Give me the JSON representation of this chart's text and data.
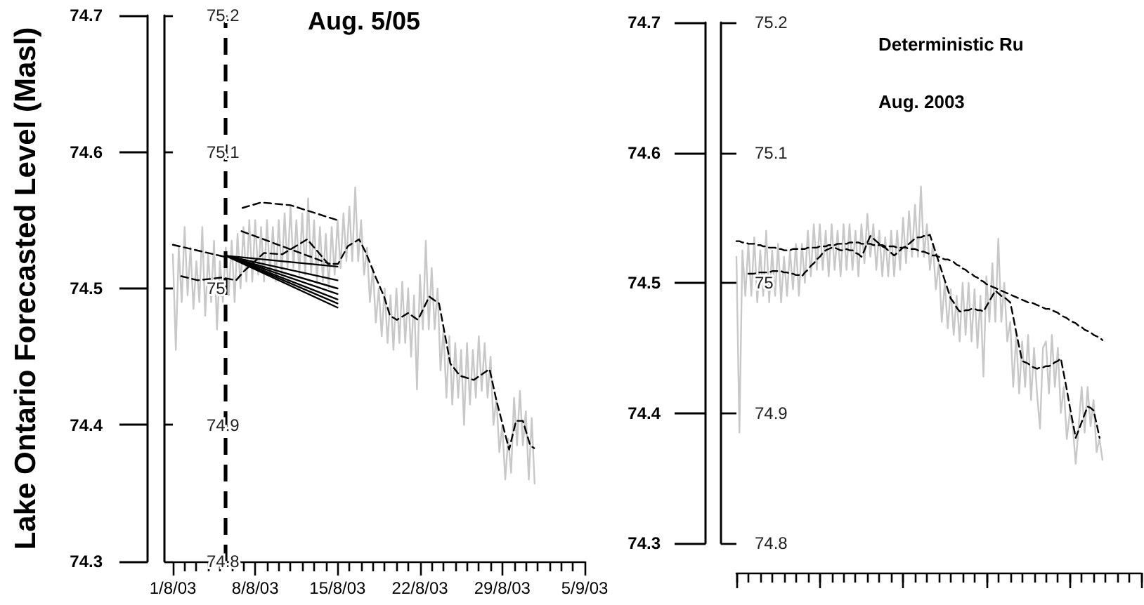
{
  "chart_data": [
    {
      "type": "line",
      "title": "Aug. 5/05",
      "ylabel": "Lake Ontario Forecasted Level (Masl)",
      "marker": "none",
      "xlim": [
        "2003-08-01",
        "2003-09-05"
      ],
      "xticks": [
        {
          "value": "2003-08-01",
          "label": "1/8/03"
        },
        {
          "value": "2003-08-02",
          "label": null
        },
        {
          "value": "2003-08-03",
          "label": null
        },
        {
          "value": "2003-08-04",
          "label": null
        },
        {
          "value": "2003-08-05",
          "label": null
        },
        {
          "value": "2003-08-06",
          "label": null
        },
        {
          "value": "2003-08-07",
          "label": null
        },
        {
          "value": "2003-08-08",
          "label": "8/8/03"
        },
        {
          "value": "2003-08-09",
          "label": null
        },
        {
          "value": "2003-08-10",
          "label": null
        },
        {
          "value": "2003-08-11",
          "label": null
        },
        {
          "value": "2003-08-12",
          "label": null
        },
        {
          "value": "2003-08-13",
          "label": null
        },
        {
          "value": "2003-08-14",
          "label": null
        },
        {
          "value": "2003-08-15",
          "label": "15/8/03"
        },
        {
          "value": "2003-08-16",
          "label": null
        },
        {
          "value": "2003-08-17",
          "label": null
        },
        {
          "value": "2003-08-18",
          "label": null
        },
        {
          "value": "2003-08-19",
          "label": null
        },
        {
          "value": "2003-08-20",
          "label": null
        },
        {
          "value": "2003-08-21",
          "label": null
        },
        {
          "value": "2003-08-22",
          "label": "22/8/03"
        },
        {
          "value": "2003-08-23",
          "label": null
        },
        {
          "value": "2003-08-24",
          "label": null
        },
        {
          "value": "2003-08-25",
          "label": null
        },
        {
          "value": "2003-08-26",
          "label": null
        },
        {
          "value": "2003-08-27",
          "label": null
        },
        {
          "value": "2003-08-28",
          "label": null
        },
        {
          "value": "2003-08-29",
          "label": "29/8/03"
        },
        {
          "value": "2003-08-30",
          "label": null
        },
        {
          "value": "2003-08-31",
          "label": null
        },
        {
          "value": "2003-09-01",
          "label": null
        },
        {
          "value": "2003-09-02",
          "label": null
        },
        {
          "value": "2003-09-03",
          "label": null
        },
        {
          "value": "2003-09-04",
          "label": null
        },
        {
          "value": "2003-09-05",
          "label": "5/9/03"
        }
      ],
      "ylim": [
        74.3,
        74.7
      ],
      "yticks": [
        74.3,
        74.4,
        74.5,
        74.6,
        74.7
      ],
      "y2lim": [
        74.8,
        75.2
      ],
      "y2ticks": [
        74.8,
        74.9,
        75,
        75.1,
        75.2
      ],
      "ref_lines": [
        {
          "axis": "x",
          "value": "2003-08-05T12:00",
          "line_style": "dashed",
          "color": "#000000"
        }
      ],
      "series": [
        {
          "color": "#c8c8c8",
          "line_style": "solid",
          "x": [
            "2003-08-01T00:00",
            "2003-08-01T06:00",
            "2003-08-01T12:00",
            "2003-08-01T18:00",
            "2003-08-02T00:00",
            "2003-08-02T06:00",
            "2003-08-02T12:00",
            "2003-08-02T18:00",
            "2003-08-03T00:00",
            "2003-08-03T06:00",
            "2003-08-03T12:00",
            "2003-08-03T18:00",
            "2003-08-04T00:00",
            "2003-08-04T06:00",
            "2003-08-04T12:00",
            "2003-08-04T18:00",
            "2003-08-05T00:00",
            "2003-08-05T06:00",
            "2003-08-05T12:00",
            "2003-08-05T18:00",
            "2003-08-06T00:00",
            "2003-08-06T06:00",
            "2003-08-06T12:00",
            "2003-08-06T18:00",
            "2003-08-07T00:00",
            "2003-08-07T06:00",
            "2003-08-07T12:00",
            "2003-08-07T18:00",
            "2003-08-08T00:00",
            "2003-08-08T06:00",
            "2003-08-08T12:00",
            "2003-08-08T18:00",
            "2003-08-09T00:00",
            "2003-08-09T06:00",
            "2003-08-09T12:00",
            "2003-08-09T18:00",
            "2003-08-10T00:00",
            "2003-08-10T06:00",
            "2003-08-10T12:00",
            "2003-08-10T18:00",
            "2003-08-11T00:00",
            "2003-08-11T06:00",
            "2003-08-11T12:00",
            "2003-08-11T18:00",
            "2003-08-12T00:00",
            "2003-08-12T06:00",
            "2003-08-12T12:00",
            "2003-08-12T18:00",
            "2003-08-13T00:00",
            "2003-08-13T06:00",
            "2003-08-13T12:00",
            "2003-08-13T18:00",
            "2003-08-14T00:00",
            "2003-08-14T06:00",
            "2003-08-14T12:00",
            "2003-08-14T18:00",
            "2003-08-15T00:00",
            "2003-08-15T06:00",
            "2003-08-15T12:00",
            "2003-08-15T18:00",
            "2003-08-16T00:00",
            "2003-08-16T06:00",
            "2003-08-16T12:00",
            "2003-08-16T18:00",
            "2003-08-17T00:00",
            "2003-08-17T06:00",
            "2003-08-17T12:00",
            "2003-08-17T18:00",
            "2003-08-18T00:00",
            "2003-08-18T06:00",
            "2003-08-18T12:00",
            "2003-08-18T18:00",
            "2003-08-19T00:00",
            "2003-08-19T06:00",
            "2003-08-19T12:00",
            "2003-08-19T18:00",
            "2003-08-20T00:00",
            "2003-08-20T06:00",
            "2003-08-20T12:00",
            "2003-08-20T18:00",
            "2003-08-21T00:00",
            "2003-08-21T06:00",
            "2003-08-21T12:00",
            "2003-08-21T18:00",
            "2003-08-22T00:00",
            "2003-08-22T06:00",
            "2003-08-22T12:00",
            "2003-08-22T18:00",
            "2003-08-23T00:00",
            "2003-08-23T06:00",
            "2003-08-23T12:00",
            "2003-08-23T18:00",
            "2003-08-24T00:00",
            "2003-08-24T06:00",
            "2003-08-24T12:00",
            "2003-08-24T18:00",
            "2003-08-25T00:00",
            "2003-08-25T06:00",
            "2003-08-25T12:00",
            "2003-08-25T18:00",
            "2003-08-26T00:00",
            "2003-08-26T06:00",
            "2003-08-26T12:00",
            "2003-08-26T18:00",
            "2003-08-27T00:00",
            "2003-08-27T06:00",
            "2003-08-27T12:00",
            "2003-08-27T18:00",
            "2003-08-28T00:00",
            "2003-08-28T06:00",
            "2003-08-28T12:00",
            "2003-08-28T18:00",
            "2003-08-29T00:00",
            "2003-08-29T06:00",
            "2003-08-29T12:00",
            "2003-08-29T18:00",
            "2003-08-30T00:00",
            "2003-08-30T06:00",
            "2003-08-30T12:00",
            "2003-08-30T18:00",
            "2003-08-31T00:00",
            "2003-08-31T06:00",
            "2003-08-31T12:00",
            "2003-08-31T18:00"
          ],
          "values": [
            74.525,
            74.455,
            74.53,
            74.49,
            74.545,
            74.495,
            74.53,
            74.485,
            74.52,
            74.49,
            74.545,
            74.48,
            74.525,
            74.49,
            74.535,
            74.47,
            74.52,
            74.49,
            74.53,
            74.495,
            74.535,
            74.49,
            74.54,
            74.5,
            74.545,
            74.505,
            74.55,
            74.505,
            74.55,
            74.51,
            74.545,
            74.505,
            74.55,
            74.51,
            74.545,
            74.505,
            74.55,
            74.51,
            74.555,
            74.515,
            74.56,
            74.515,
            74.55,
            74.51,
            74.555,
            74.51,
            74.566,
            74.51,
            74.55,
            74.505,
            74.545,
            74.505,
            74.54,
            74.5,
            74.545,
            74.51,
            74.55,
            74.515,
            74.555,
            74.52,
            74.56,
            74.52,
            74.574,
            74.52,
            74.55,
            74.51,
            74.53,
            74.49,
            74.515,
            74.475,
            74.5,
            74.465,
            74.5,
            74.46,
            74.495,
            74.455,
            74.5,
            74.46,
            74.505,
            74.46,
            74.5,
            74.45,
            74.495,
            74.426,
            74.51,
            74.47,
            74.535,
            74.47,
            74.515,
            74.47,
            74.5,
            74.44,
            74.47,
            74.42,
            74.465,
            74.415,
            74.46,
            74.42,
            74.455,
            74.4,
            74.46,
            74.415,
            74.455,
            74.42,
            74.465,
            74.425,
            74.46,
            74.42,
            74.45,
            74.4,
            74.42,
            74.38,
            74.4,
            74.36,
            74.39,
            74.365,
            74.42,
            74.385,
            74.425,
            74.385,
            74.41,
            74.36,
            74.405,
            74.357
          ]
        },
        {
          "color": "#000000",
          "line_style": "dashed",
          "x": [
            "2003-08-01T17:00",
            "2003-08-03T03:00",
            "2003-08-05T04:00",
            "2003-08-06T09:00",
            "2003-08-07T02:00",
            "2003-08-08T18:00",
            "2003-08-10T07:00",
            "2003-08-12T10:00",
            "2003-08-14T05:00",
            "2003-08-15T01:00",
            "2003-08-15T21:00",
            "2003-08-16T20:00",
            "2003-08-17T10:00",
            "2003-08-18T06:00",
            "2003-08-18T23:00",
            "2003-08-19T11:00",
            "2003-08-20T01:00",
            "2003-08-21T00:00",
            "2003-08-21T20:00",
            "2003-08-22T19:00",
            "2003-08-23T15:00",
            "2003-08-24T14:00",
            "2003-08-25T10:00",
            "2003-08-26T14:00",
            "2003-08-27T22:00",
            "2003-08-28T12:00",
            "2003-08-29T14:00",
            "2003-08-30T04:00",
            "2003-08-30T18:00",
            "2003-08-31T09:00",
            "2003-08-31T17:00"
          ],
          "values": [
            74.509,
            74.506,
            74.508,
            74.506,
            74.513,
            74.526,
            74.525,
            74.536,
            74.518,
            74.518,
            74.531,
            74.536,
            74.526,
            74.508,
            74.494,
            74.48,
            74.477,
            74.482,
            74.477,
            74.494,
            74.489,
            74.445,
            74.436,
            74.433,
            74.441,
            74.418,
            74.382,
            74.403,
            74.403,
            74.385,
            74.383
          ]
        },
        {
          "color": "#000000",
          "line_style": "dashed",
          "x": [
            "2003-08-01T00:00",
            "2003-08-05T12:00"
          ],
          "values": [
            74.532,
            74.523
          ]
        },
        {
          "color": "#000000",
          "line_style": "dashed",
          "x": [
            "2003-08-06T22:00",
            "2003-08-08T12:00",
            "2003-08-11T00:00",
            "2003-08-15T00:00"
          ],
          "values": [
            74.559,
            74.563,
            74.561,
            74.55
          ]
        },
        {
          "color": "#000000",
          "line_style": "dashed",
          "x": [
            "2003-08-06T20:00",
            "2003-08-14T08:00"
          ],
          "values": [
            74.542,
            74.518
          ]
        },
        {
          "color": "#000000",
          "line_style": "solid",
          "x": [
            "2003-08-05T12:00",
            "2003-08-15T00:00"
          ],
          "values": [
            74.524,
            74.516
          ]
        },
        {
          "color": "#000000",
          "line_style": "solid",
          "x": [
            "2003-08-05T12:00",
            "2003-08-15T00:00"
          ],
          "values": [
            74.524,
            74.506
          ]
        },
        {
          "color": "#000000",
          "line_style": "solid",
          "x": [
            "2003-08-05T12:00",
            "2003-08-15T00:00"
          ],
          "values": [
            74.524,
            74.5
          ]
        },
        {
          "color": "#000000",
          "line_style": "solid",
          "x": [
            "2003-08-05T12:00",
            "2003-08-15T00:00"
          ],
          "values": [
            74.524,
            74.496
          ]
        },
        {
          "color": "#000000",
          "line_style": "solid",
          "x": [
            "2003-08-05T12:00",
            "2003-08-15T00:00"
          ],
          "values": [
            74.524,
            74.492
          ]
        },
        {
          "color": "#000000",
          "line_style": "solid",
          "x": [
            "2003-08-05T12:00",
            "2003-08-15T00:00"
          ],
          "values": [
            74.524,
            74.489
          ]
        },
        {
          "color": "#000000",
          "line_style": "solid",
          "x": [
            "2003-08-05T12:00",
            "2003-08-15T00:00"
          ],
          "values": [
            74.524,
            74.486
          ]
        }
      ]
    },
    {
      "type": "line",
      "title": "Deterministic Ru",
      "subtitle": "Aug. 2003",
      "marker": "none",
      "tick_labels": "y",
      "categories": [
        null,
        null,
        null,
        null,
        null,
        null,
        null,
        null,
        null,
        null,
        null,
        null,
        null,
        null,
        null,
        null,
        null,
        null,
        null,
        null,
        null,
        null,
        null,
        null,
        null,
        null,
        null,
        null,
        null,
        null,
        null,
        null,
        null,
        null,
        null,
        null,
        null,
        null,
        null,
        null,
        null,
        null,
        null,
        null,
        null,
        null,
        null,
        null,
        null,
        null,
        null,
        null,
        null,
        null,
        null,
        null,
        null,
        null,
        null,
        null,
        null,
        null,
        null,
        null,
        null,
        null,
        null,
        null,
        null,
        null,
        null,
        null,
        null,
        null,
        null,
        null,
        null,
        null,
        null,
        null,
        null,
        null,
        null,
        null,
        null,
        null,
        null,
        null,
        null,
        null,
        null,
        null,
        null,
        null,
        null,
        null,
        null,
        null,
        null,
        null,
        null,
        null,
        null,
        null,
        null,
        null,
        null,
        null,
        null,
        null,
        null,
        null,
        null,
        null,
        null,
        null,
        null,
        null,
        null,
        null,
        null,
        null,
        null,
        null,
        null,
        null,
        null,
        null,
        null,
        null,
        null,
        null,
        null,
        null,
        null,
        null,
        null
      ],
      "ylim": [
        74.3,
        74.7
      ],
      "yticks": [
        74.3,
        74.4,
        74.5,
        74.6,
        74.7
      ],
      "y2lim": [
        74.8,
        75.2
      ],
      "y2ticks": [
        74.8,
        74.9,
        75,
        75.1,
        75.2
      ],
      "series": [
        {
          "color": "#c8c8c8",
          "line_style": "solid",
          "values": [
            74.52,
            74.385,
            74.525,
            74.49,
            74.53,
            74.49,
            74.535,
            74.485,
            74.525,
            74.49,
            74.54,
            74.485,
            74.525,
            74.49,
            74.53,
            74.485,
            74.52,
            74.49,
            74.525,
            74.495,
            74.53,
            74.49,
            74.53,
            74.5,
            74.54,
            74.505,
            74.545,
            74.51,
            74.545,
            74.51,
            74.54,
            74.505,
            74.545,
            74.51,
            74.54,
            74.505,
            74.545,
            74.51,
            74.545,
            74.51,
            74.54,
            74.505,
            74.545,
            74.515,
            74.553,
            74.52,
            74.545,
            74.51,
            74.54,
            74.505,
            74.535,
            74.505,
            74.54,
            74.505,
            74.54,
            74.51,
            74.55,
            74.515,
            74.555,
            74.52,
            74.56,
            74.52,
            74.574,
            74.52,
            74.545,
            74.51,
            74.53,
            74.495,
            74.515,
            74.47,
            74.5,
            74.465,
            74.495,
            74.46,
            74.49,
            74.455,
            74.5,
            74.46,
            74.5,
            74.455,
            74.495,
            74.45,
            74.49,
            74.428,
            74.505,
            74.47,
            74.515,
            74.47,
            74.534,
            74.47,
            74.5,
            74.455,
            74.47,
            74.42,
            74.46,
            74.415,
            74.455,
            74.42,
            74.46,
            74.41,
            74.45,
            74.415,
            74.388,
            74.45,
            74.455,
            74.415,
            74.46,
            74.42,
            74.45,
            74.4,
            74.42,
            74.38,
            74.4,
            74.39,
            74.361,
            74.39,
            74.42,
            74.385,
            74.42,
            74.39,
            74.41,
            74.37,
            74.38,
            74.364,
            null,
            null,
            null,
            null,
            null,
            null,
            null,
            null,
            null,
            null,
            null,
            null,
            null
          ]
        },
        {
          "color": "#000000",
          "line_style": "dashed",
          "values": [
            null,
            null,
            null,
            null,
            74.507,
            74.507,
            74.507,
            74.508,
            74.508,
            74.508,
            74.508,
            74.508,
            74.509,
            74.509,
            74.509,
            74.509,
            74.508,
            74.508,
            74.507,
            74.507,
            74.506,
            74.506,
            74.505,
            74.508,
            74.51,
            74.513,
            74.515,
            74.518,
            74.52,
            74.523,
            74.525,
            74.526,
            74.527,
            74.527,
            74.526,
            74.525,
            74.525,
            74.526,
            74.525,
            74.525,
            74.523,
            74.522,
            74.52,
            74.525,
            74.531,
            74.536,
            74.534,
            74.532,
            74.53,
            74.528,
            74.527,
            74.525,
            74.523,
            74.521,
            74.523,
            74.525,
            74.527,
            74.528,
            74.53,
            74.532,
            74.534,
            74.535,
            74.535,
            74.536,
            74.536,
            74.537,
            74.53,
            74.523,
            74.516,
            74.509,
            74.502,
            74.495,
            74.488,
            74.485,
            74.481,
            74.478,
            74.478,
            74.479,
            74.479,
            74.48,
            74.48,
            74.479,
            74.479,
            74.478,
            74.482,
            74.486,
            74.49,
            74.494,
            74.492,
            74.49,
            74.489,
            74.487,
            74.485,
            74.474,
            74.462,
            74.451,
            74.44,
            74.439,
            74.438,
            74.436,
            74.435,
            74.434,
            74.435,
            74.435,
            74.436,
            74.436,
            74.437,
            74.439,
            74.44,
            74.442,
            74.43,
            74.418,
            74.405,
            74.393,
            74.381,
            74.387,
            74.393,
            74.399,
            74.405,
            74.404,
            74.402,
            74.392,
            74.381,
            null,
            null,
            null,
            null,
            null,
            null,
            null,
            null,
            null,
            null,
            null,
            null,
            null,
            null
          ]
        },
        {
          "color": "#000000",
          "line_style": "dashed",
          "values": [
            74.532,
            74.532,
            74.531,
            74.531,
            74.53,
            74.53,
            74.53,
            74.529,
            74.529,
            74.528,
            74.528,
            74.527,
            74.527,
            74.527,
            74.526,
            74.526,
            74.525,
            74.525,
            74.525,
            74.526,
            74.526,
            74.526,
            74.526,
            74.526,
            74.527,
            74.527,
            74.527,
            74.527,
            74.528,
            74.528,
            74.528,
            74.529,
            74.529,
            74.529,
            74.53,
            74.53,
            74.53,
            74.53,
            74.531,
            74.531,
            74.531,
            74.531,
            74.53,
            74.53,
            74.53,
            74.53,
            74.529,
            74.529,
            74.529,
            74.529,
            74.528,
            74.528,
            74.528,
            74.528,
            74.527,
            74.527,
            74.527,
            74.527,
            74.526,
            74.526,
            74.526,
            74.525,
            74.524,
            74.524,
            74.523,
            74.522,
            74.521,
            74.521,
            74.52,
            74.519,
            74.518,
            74.518,
            74.517,
            74.516,
            74.514,
            74.513,
            74.511,
            74.51,
            74.508,
            74.507,
            74.505,
            74.504,
            74.502,
            74.501,
            74.499,
            74.498,
            74.497,
            74.496,
            74.495,
            74.494,
            74.493,
            74.492,
            74.491,
            74.49,
            74.489,
            74.488,
            74.487,
            74.486,
            74.485,
            74.485,
            74.484,
            74.483,
            74.482,
            74.481,
            74.48,
            74.48,
            74.479,
            74.478,
            74.477,
            74.475,
            74.474,
            74.473,
            74.471,
            74.47,
            74.469,
            74.467,
            74.466,
            74.464,
            74.463,
            74.462,
            74.46,
            74.459,
            74.458,
            74.456,
            null,
            null,
            null,
            null,
            null,
            null,
            null,
            null,
            null,
            null,
            null,
            null,
            null
          ]
        }
      ]
    }
  ]
}
